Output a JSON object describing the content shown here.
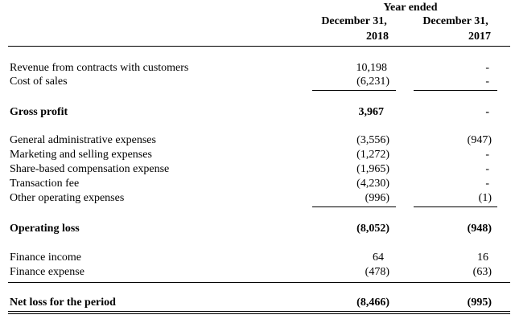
{
  "header": {
    "group_label": "Year ended",
    "col_2018_line1": "December 31,",
    "col_2018_line2": "2018",
    "col_2017_line1": "December 31,",
    "col_2017_line2": "2017"
  },
  "rows": [
    {
      "label": "Revenue from contracts with customers",
      "v2018": "10,198",
      "v2017": "-"
    },
    {
      "label": "Cost of sales",
      "v2018": "(6,231)",
      "v2017": "-"
    },
    {
      "label": "Gross profit",
      "v2018": "3,967",
      "v2017": "-"
    },
    {
      "label": "General administrative expenses",
      "v2018": "(3,556)",
      "v2017": "(947)"
    },
    {
      "label": "Marketing and selling expenses",
      "v2018": "(1,272)",
      "v2017": "-"
    },
    {
      "label": "Share-based compensation expense",
      "v2018": "(1,965)",
      "v2017": "-"
    },
    {
      "label": "Transaction fee",
      "v2018": "(4,230)",
      "v2017": "-"
    },
    {
      "label": "Other operating expenses",
      "v2018": "(996)",
      "v2017": "(1)"
    },
    {
      "label": "Operating loss",
      "v2018": "(8,052)",
      "v2017": "(948)"
    },
    {
      "label": "Finance income",
      "v2018": "64",
      "v2017": "16"
    },
    {
      "label": "Finance expense",
      "v2018": "(478)",
      "v2017": "(63)"
    },
    {
      "label": "Net loss for the period",
      "v2018": "(8,466)",
      "v2017": "(995)"
    }
  ]
}
